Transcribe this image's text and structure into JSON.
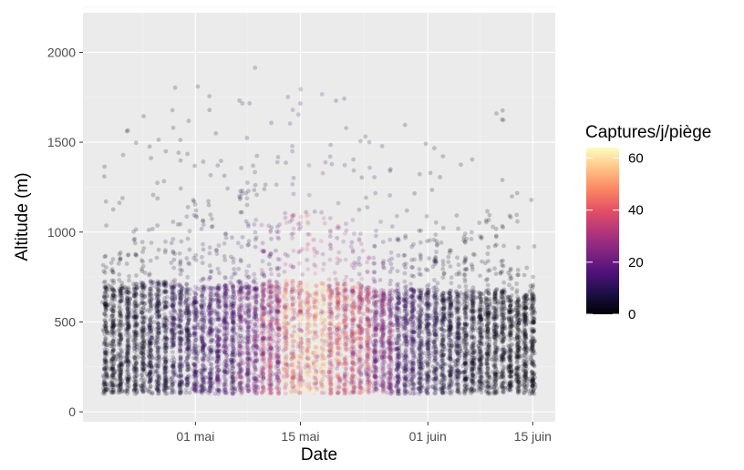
{
  "chart_data": {
    "type": "scatter",
    "xlabel": "Date",
    "ylabel": "Altitude (m)",
    "x_ticks": [
      "01 mai",
      "15 mai",
      "01 juin",
      "15 juin"
    ],
    "x_tick_values": [
      "2000-05-01",
      "2000-05-15",
      "2000-06-01",
      "2000-06-15"
    ],
    "xlim": [
      "2000-04-16",
      "2000-06-18"
    ],
    "y_ticks": [
      "0",
      "500",
      "1000",
      "1500",
      "2000"
    ],
    "y_tick_values": [
      0,
      500,
      1000,
      1500,
      2000
    ],
    "ylim": [
      -55,
      2220
    ],
    "grid": true,
    "point_opacity": 0.2,
    "legend": {
      "title": "Captures/j/piège",
      "placement": "right",
      "ticks": [
        "0",
        "20",
        "40",
        "60"
      ],
      "tick_values": [
        0,
        20,
        40,
        60
      ],
      "range": [
        0,
        64
      ],
      "colormap": "magma",
      "colors": [
        "#000004",
        "#1c1044",
        "#4f127b",
        "#812581",
        "#b5367a",
        "#e55064",
        "#fb8761",
        "#fec287",
        "#fcfdbf"
      ]
    },
    "colors": {
      "panel": "#ebebeb",
      "grid_major": "#ffffff",
      "grid_minor": "#f4f4f4"
    },
    "series": [
      {
        "x": [
          "2000-04-19",
          "2000-04-22",
          "2000-04-25",
          "2000-04-28",
          "2000-05-01",
          "2000-05-04",
          "2000-05-07",
          "2000-05-10",
          "2000-05-13",
          "2000-05-16",
          "2000-05-19",
          "2000-05-22",
          "2000-05-25",
          "2000-05-28",
          "2000-05-31",
          "2000-06-03",
          "2000-06-06",
          "2000-06-09",
          "2000-06-12",
          "2000-06-15"
        ],
        "y_median": [
          450,
          460,
          470,
          460,
          450,
          460,
          470,
          470,
          470,
          460,
          460,
          450,
          440,
          440,
          440,
          430,
          430,
          440,
          420,
          420
        ],
        "y_max": [
          1450,
          1650,
          1550,
          1850,
          1900,
          1600,
          2100,
          1700,
          1800,
          1800,
          1750,
          1600,
          1550,
          1650,
          1700,
          1450,
          1600,
          1800,
          1300,
          1200
        ],
        "captures_mean": [
          3,
          4,
          6,
          9,
          12,
          14,
          20,
          28,
          45,
          55,
          40,
          35,
          22,
          12,
          8,
          6,
          4,
          3,
          2,
          2
        ]
      }
    ]
  }
}
